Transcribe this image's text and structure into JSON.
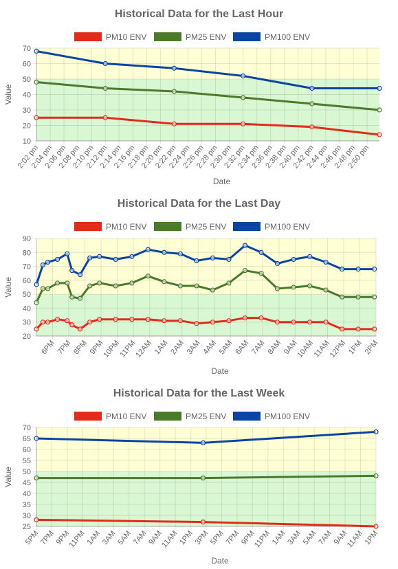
{
  "charts": [
    {
      "id": "hour",
      "type": "line",
      "title": "Historical Data for the Last Hour",
      "xlabel": "Date",
      "ylabel": "Value",
      "ylim": [
        10,
        70
      ],
      "yticks": [
        10,
        20,
        30,
        40,
        50,
        60,
        70
      ],
      "x_ticks": [
        "2:02 pm",
        "2:04 pm",
        "2:06 pm",
        "2:08 pm",
        "2:10 pm",
        "2:12 pm",
        "2:14 pm",
        "2:16 pm",
        "2:18 pm",
        "2:20 pm",
        "2:22 pm",
        "2:24 pm",
        "2:26 pm",
        "2:28 pm",
        "2:30 pm",
        "2:32 pm",
        "2:34 pm",
        "2:36 pm",
        "2:38 pm",
        "2:40 pm",
        "2:42 pm",
        "2:44 pm",
        "2:46 pm",
        "2:48 pm",
        "2:50 pm"
      ],
      "x_max": 24.9,
      "bands": [
        {
          "from": 10,
          "to": 50,
          "color": "#d9f7d3"
        },
        {
          "from": 50,
          "to": 70,
          "color": "#ffffd6"
        }
      ],
      "series": [
        {
          "name": "PM10 ENV",
          "color": "#e32b1b",
          "x": [
            0,
            5,
            10,
            15,
            20,
            24.9
          ],
          "values": [
            25,
            25,
            21,
            21,
            19,
            14
          ]
        },
        {
          "name": "PM25 ENV",
          "color": "#4a7a2a",
          "x": [
            0,
            5,
            10,
            15,
            20,
            24.9
          ],
          "values": [
            48,
            44,
            42,
            38,
            34,
            30
          ]
        },
        {
          "name": "PM100 ENV",
          "color": "#0b45a4",
          "x": [
            0,
            5,
            10,
            15,
            20,
            24.9
          ],
          "values": [
            68,
            60,
            57,
            52,
            44,
            44
          ]
        }
      ]
    },
    {
      "id": "day",
      "type": "line",
      "title": "Historical Data for the Last Day",
      "xlabel": "Date",
      "ylabel": "Value",
      "ylim": [
        20,
        90
      ],
      "yticks": [
        20,
        30,
        40,
        50,
        60,
        70,
        80,
        90
      ],
      "x_ticks": [
        "6PM",
        "7PM",
        "8PM",
        "9PM",
        "10PM",
        "11PM",
        "12AM",
        "1AM",
        "2AM",
        "3AM",
        "4AM",
        "5AM",
        "6AM",
        "7AM",
        "8AM",
        "9AM",
        "10AM",
        "11AM",
        "12PM",
        "1PM",
        "2PM"
      ],
      "x_min": 17.0,
      "x_max": 38.0,
      "bands": [
        {
          "from": 20,
          "to": 50,
          "color": "#d9f7d3"
        },
        {
          "from": 50,
          "to": 90,
          "color": "#ffffd6"
        }
      ],
      "series": [
        {
          "name": "PM10 ENV",
          "color": "#e32b1b",
          "x": [
            17.0,
            17.4,
            17.7,
            18.3,
            18.9,
            19.2,
            19.7,
            20.3,
            20.9,
            21.9,
            22.9,
            23.9,
            24.9,
            25.9,
            26.9,
            27.9,
            28.9,
            29.9,
            30.9,
            31.9,
            32.9,
            33.9,
            34.9,
            35.9,
            36.9,
            37.9
          ],
          "values": [
            25,
            30,
            30,
            32,
            31,
            28,
            25,
            30,
            32,
            32,
            32,
            32,
            31,
            31,
            29,
            30,
            31,
            33,
            33,
            30,
            30,
            30,
            30,
            25,
            25,
            25
          ]
        },
        {
          "name": "PM25 ENV",
          "color": "#4a7a2a",
          "x": [
            17.0,
            17.4,
            17.7,
            18.3,
            18.9,
            19.2,
            19.7,
            20.3,
            20.9,
            21.9,
            22.9,
            23.9,
            24.9,
            25.9,
            26.9,
            27.9,
            28.9,
            29.9,
            30.9,
            31.9,
            32.9,
            33.9,
            34.9,
            35.9,
            36.9,
            37.9
          ],
          "values": [
            44,
            54,
            54,
            58,
            58,
            48,
            47,
            56,
            58,
            56,
            58,
            63,
            59,
            56,
            56,
            53,
            58,
            67,
            65,
            54,
            55,
            56,
            53,
            48,
            48,
            48
          ]
        },
        {
          "name": "PM100 ENV",
          "color": "#0b45a4",
          "x": [
            17.0,
            17.4,
            17.7,
            18.3,
            18.9,
            19.2,
            19.7,
            20.3,
            20.9,
            21.9,
            22.9,
            23.9,
            24.9,
            25.9,
            26.9,
            27.9,
            28.9,
            29.9,
            30.9,
            31.9,
            32.9,
            33.9,
            34.9,
            35.9,
            36.9,
            37.9
          ],
          "values": [
            57,
            71,
            73,
            75,
            79,
            67,
            64,
            76,
            77,
            75,
            77,
            82,
            80,
            79,
            74,
            76,
            75,
            85,
            80,
            72,
            75,
            77,
            73,
            68,
            68,
            68
          ]
        }
      ]
    },
    {
      "id": "week",
      "type": "line",
      "title": "Historical Data for the Last Week",
      "xlabel": "Date",
      "ylabel": "Value",
      "ylim": [
        25,
        70
      ],
      "yticks": [
        25,
        30,
        35,
        40,
        45,
        50,
        55,
        60,
        65,
        70
      ],
      "x_ticks": [
        "5PM",
        "7PM",
        "9PM",
        "11PM",
        "1AM",
        "3AM",
        "5AM",
        "7AM",
        "9AM",
        "11AM",
        "1PM",
        "3PM",
        "5PM",
        "7PM",
        "9PM",
        "11PM",
        "1AM",
        "3AM",
        "5AM",
        "7AM",
        "9AM",
        "11AM",
        "1PM"
      ],
      "x_max": 22.0,
      "bands": [
        {
          "from": 25,
          "to": 50,
          "color": "#d9f7d3"
        },
        {
          "from": 50,
          "to": 70,
          "color": "#ffffd6"
        }
      ],
      "series": [
        {
          "name": "PM10 ENV",
          "color": "#e32b1b",
          "x": [
            0,
            10.8,
            22.0
          ],
          "values": [
            28,
            27,
            25
          ]
        },
        {
          "name": "PM25 ENV",
          "color": "#4a7a2a",
          "x": [
            0,
            10.8,
            22.0
          ],
          "values": [
            47,
            47,
            48
          ]
        },
        {
          "name": "PM100 ENV",
          "color": "#0b45a4",
          "x": [
            0,
            10.8,
            22.0
          ],
          "values": [
            65,
            63,
            68
          ]
        }
      ]
    }
  ]
}
